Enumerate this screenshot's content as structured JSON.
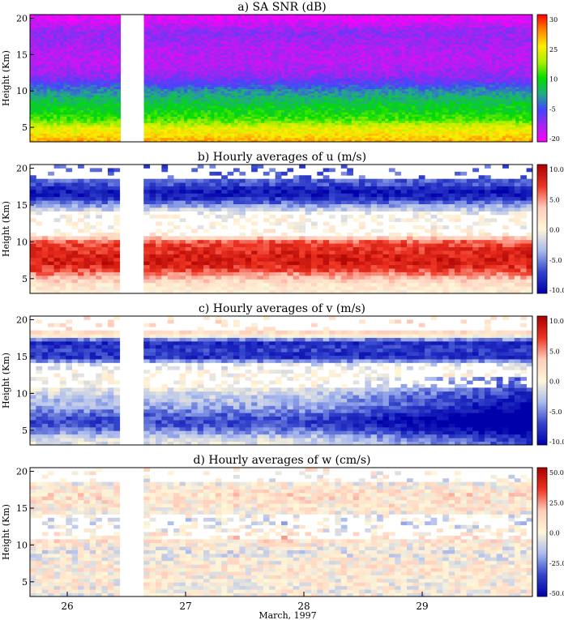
{
  "figure": {
    "xlabel": "March, 1997",
    "x_ticks": [
      "26",
      "27",
      "28",
      "29"
    ]
  },
  "colors": {
    "snr_scale": [
      "#ff00ff",
      "#aa22ee",
      "#4444ff",
      "#22aa88",
      "#00dd00",
      "#aaee00",
      "#ffee00",
      "#ff8800",
      "#ff0000"
    ],
    "wind_scale": [
      "#0000aa",
      "#3344cc",
      "#aabbee",
      "#fff6d8",
      "#ffccbb",
      "#ee3322",
      "#aa0000"
    ],
    "data_gap": "#ffffff"
  },
  "chart_data": [
    {
      "type": "heatmap",
      "title": "a) SA SNR (dB)",
      "ylabel": "Height (Km)",
      "x_range": [
        25.6,
        30.0
      ],
      "y_range": [
        3,
        20.5
      ],
      "y_ticks": [
        5,
        10,
        15,
        20
      ],
      "colorbar_ticks": [
        "30",
        "25",
        "10",
        "-5",
        "-20"
      ],
      "colorbar_range": [
        -20,
        30
      ],
      "data_gaps": [
        [
          26.4,
          26.6
        ]
      ],
      "profile": {
        "heights_km": [
          3,
          4,
          5,
          6,
          7,
          8,
          9,
          10,
          11,
          12,
          14,
          16,
          18,
          20
        ],
        "snr_db": [
          22,
          18,
          15,
          8,
          5,
          3,
          0,
          -3,
          -8,
          -12,
          -15,
          -14,
          -12,
          -18
        ]
      }
    },
    {
      "type": "heatmap",
      "title": "b) Hourly averages of u (m/s)",
      "ylabel": "Height (Km)",
      "x_range": [
        25.6,
        30.0
      ],
      "y_range": [
        3,
        20.5
      ],
      "y_ticks": [
        5,
        10,
        15,
        20
      ],
      "colorbar_ticks": [
        "10.0",
        "5.0",
        "0.0",
        "-5.0",
        "-10.0"
      ],
      "colorbar_range": [
        -10,
        10
      ],
      "data_gaps": [
        [
          26.4,
          26.6
        ]
      ],
      "profile": {
        "heights_km": [
          3,
          4,
          5,
          6,
          7,
          8,
          9,
          10,
          11,
          12,
          13,
          14,
          15,
          16,
          17,
          18
        ],
        "u_ms": [
          0.5,
          1,
          3,
          6,
          8,
          8,
          7,
          6,
          1,
          0,
          0,
          -1,
          -4,
          -8,
          -9,
          -6
        ]
      }
    },
    {
      "type": "heatmap",
      "title": "c) Hourly averages of v (m/s)",
      "ylabel": "Height (Km)",
      "x_range": [
        25.6,
        30.0
      ],
      "y_range": [
        3,
        20.5
      ],
      "y_ticks": [
        5,
        10,
        15,
        20
      ],
      "colorbar_ticks": [
        "10.0",
        "5.0",
        "0.0",
        "-5.0",
        "-10.0"
      ],
      "colorbar_range": [
        -10,
        10
      ],
      "data_gaps": [
        [
          26.4,
          26.6
        ]
      ],
      "profile": {
        "heights_km": [
          3,
          4,
          5,
          6,
          7,
          8,
          9,
          10,
          11,
          12,
          13,
          14,
          15,
          16,
          17,
          18
        ],
        "v_ms": [
          -1,
          -2,
          -5,
          -7,
          -6,
          -4,
          -3,
          -2,
          0,
          0,
          0,
          -2,
          -8,
          -7,
          -8,
          2
        ]
      }
    },
    {
      "type": "heatmap",
      "title": "d) Hourly averages of w (cm/s)",
      "ylabel": "Height (Km)",
      "x_range": [
        25.6,
        30.0
      ],
      "y_range": [
        3,
        20.5
      ],
      "y_ticks": [
        5,
        10,
        15,
        20
      ],
      "colorbar_ticks": [
        "50.0",
        "25.0",
        "0.0",
        "-25.0",
        "-50.0"
      ],
      "colorbar_range": [
        -50,
        50
      ],
      "data_gaps": [
        [
          26.4,
          26.6
        ]
      ],
      "profile": {
        "heights_km": [
          3,
          5,
          7,
          9,
          11,
          13,
          15,
          17,
          19,
          20
        ],
        "w_cms": [
          0,
          2,
          5,
          -5,
          10,
          -10,
          5,
          8,
          -3,
          4
        ]
      }
    }
  ]
}
